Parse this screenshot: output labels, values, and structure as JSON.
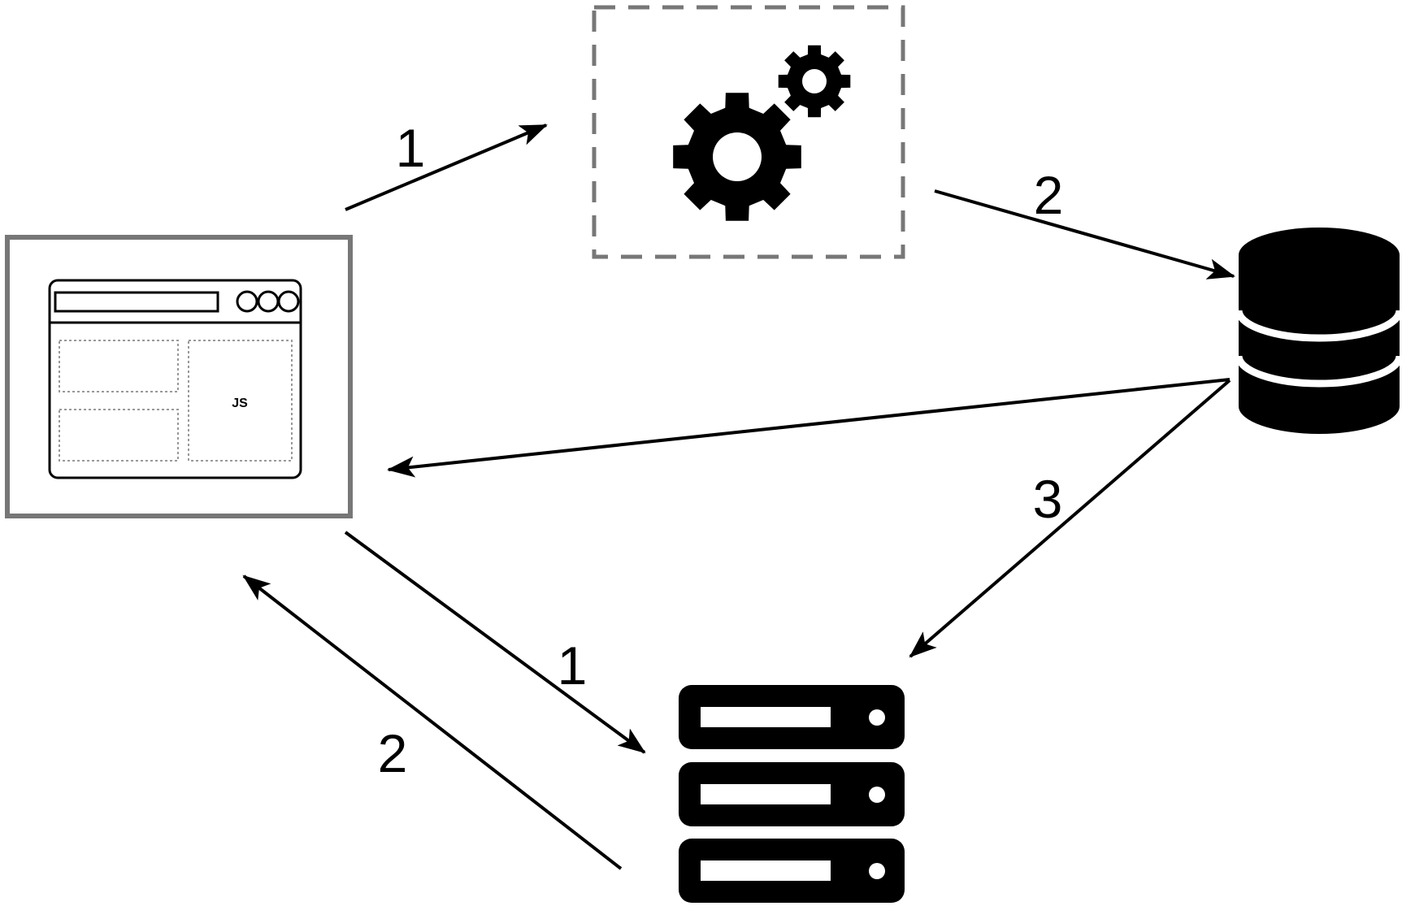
{
  "browser": {
    "panel_label": "JS"
  },
  "arrows": [
    {
      "id": "browser-to-worker",
      "label": "1"
    },
    {
      "id": "worker-to-database",
      "label": "2"
    },
    {
      "id": "database-to-browser",
      "label": ""
    },
    {
      "id": "database-to-server",
      "label": "3"
    },
    {
      "id": "browser-to-server",
      "label": "1"
    },
    {
      "id": "server-to-browser",
      "label": "2"
    }
  ],
  "colors": {
    "stroke": "#000000",
    "frame": "#777777",
    "icon_fill": "#000000"
  },
  "icons": [
    "browser-window-icon",
    "gears-icon",
    "database-icon",
    "server-rack-icon"
  ]
}
